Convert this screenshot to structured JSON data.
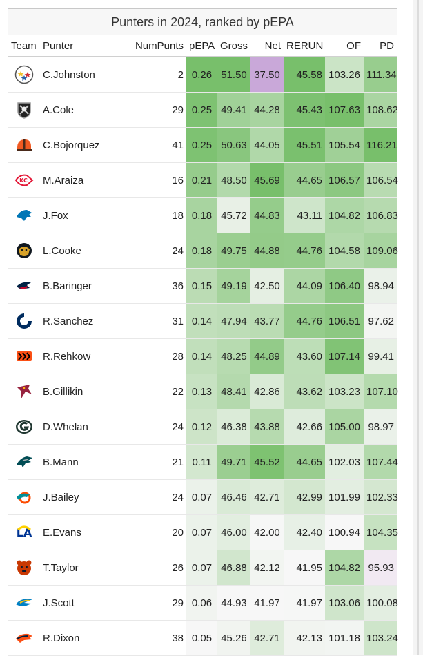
{
  "title": "Punters in 2024, ranked by pEPA",
  "columns": [
    "Team",
    "Punter",
    "NumPunts",
    "pEPA",
    "Gross",
    "Net",
    "RERUN",
    "OF",
    "PD"
  ],
  "scale": {
    "pEPA": {
      "min": 0.05,
      "max": 0.26
    },
    "Gross": {
      "min": 44.93,
      "max": 51.5
    },
    "Net": {
      "min": 41.97,
      "max": 45.69
    },
    "RERUN": {
      "min": 41.95,
      "max": 45.58
    },
    "OF": {
      "min": 100.94,
      "max": 107.63
    },
    "PD": {
      "min": 97.0,
      "max": 116.21
    }
  },
  "colors": {
    "high": "#78bf6b",
    "low": "#f7f7f7",
    "outlier": "#c9a8d9",
    "below": "#f1e9f2"
  },
  "rows": [
    {
      "team": "PIT",
      "logo": "pittsburgh-steelers-icon",
      "punter": "C.Johnston",
      "num": "2",
      "pepa": "0.26",
      "gross": "51.50",
      "net": "37.50",
      "rerun": "45.58",
      "of": "103.26",
      "pd": "111.34"
    },
    {
      "team": "LV",
      "logo": "las-vegas-raiders-icon",
      "punter": "A.Cole",
      "num": "29",
      "pepa": "0.25",
      "gross": "49.41",
      "net": "44.28",
      "rerun": "45.43",
      "of": "107.63",
      "pd": "108.62"
    },
    {
      "team": "CLE",
      "logo": "cleveland-browns-icon",
      "punter": "C.Bojorquez",
      "num": "41",
      "pepa": "0.25",
      "gross": "50.63",
      "net": "44.05",
      "rerun": "45.51",
      "of": "105.54",
      "pd": "116.21"
    },
    {
      "team": "KC",
      "logo": "kansas-city-chiefs-icon",
      "punter": "M.Araiza",
      "num": "16",
      "pepa": "0.21",
      "gross": "48.50",
      "net": "45.69",
      "rerun": "44.65",
      "of": "106.57",
      "pd": "106.54"
    },
    {
      "team": "DET",
      "logo": "detroit-lions-icon",
      "punter": "J.Fox",
      "num": "18",
      "pepa": "0.18",
      "gross": "45.72",
      "net": "44.83",
      "rerun": "43.11",
      "of": "104.82",
      "pd": "106.83"
    },
    {
      "team": "JAX",
      "logo": "jacksonville-jaguars-icon",
      "punter": "L.Cooke",
      "num": "24",
      "pepa": "0.18",
      "gross": "49.75",
      "net": "44.88",
      "rerun": "44.76",
      "of": "104.58",
      "pd": "109.06"
    },
    {
      "team": "NE",
      "logo": "new-england-patriots-icon",
      "punter": "B.Baringer",
      "num": "36",
      "pepa": "0.15",
      "gross": "49.19",
      "net": "42.50",
      "rerun": "44.09",
      "of": "106.40",
      "pd": "98.94"
    },
    {
      "team": "IND",
      "logo": "indianapolis-colts-icon",
      "punter": "R.Sanchez",
      "num": "31",
      "pepa": "0.14",
      "gross": "47.94",
      "net": "43.77",
      "rerun": "44.76",
      "of": "106.51",
      "pd": "97.62"
    },
    {
      "team": "CIN",
      "logo": "cincinnati-bengals-icon",
      "punter": "R.Rehkow",
      "num": "28",
      "pepa": "0.14",
      "gross": "48.25",
      "net": "44.89",
      "rerun": "43.60",
      "of": "107.14",
      "pd": "99.41"
    },
    {
      "team": "ARI",
      "logo": "arizona-cardinals-icon",
      "punter": "B.Gillikin",
      "num": "22",
      "pepa": "0.13",
      "gross": "48.41",
      "net": "42.86",
      "rerun": "43.62",
      "of": "103.23",
      "pd": "107.10"
    },
    {
      "team": "GB",
      "logo": "green-bay-packers-icon",
      "punter": "D.Whelan",
      "num": "24",
      "pepa": "0.12",
      "gross": "46.38",
      "net": "43.88",
      "rerun": "42.66",
      "of": "105.00",
      "pd": "98.97"
    },
    {
      "team": "PHI",
      "logo": "philadelphia-eagles-icon",
      "punter": "B.Mann",
      "num": "21",
      "pepa": "0.11",
      "gross": "49.71",
      "net": "45.52",
      "rerun": "44.65",
      "of": "102.03",
      "pd": "107.44"
    },
    {
      "team": "MIA",
      "logo": "miami-dolphins-icon",
      "punter": "J.Bailey",
      "num": "24",
      "pepa": "0.07",
      "gross": "46.46",
      "net": "42.71",
      "rerun": "42.99",
      "of": "101.99",
      "pd": "102.33"
    },
    {
      "team": "LAR",
      "logo": "los-angeles-rams-icon",
      "punter": "E.Evans",
      "num": "20",
      "pepa": "0.07",
      "gross": "46.00",
      "net": "42.00",
      "rerun": "42.40",
      "of": "100.94",
      "pd": "104.35"
    },
    {
      "team": "CHI",
      "logo": "chicago-bears-icon",
      "punter": "T.Taylor",
      "num": "26",
      "pepa": "0.07",
      "gross": "46.88",
      "net": "42.12",
      "rerun": "41.95",
      "of": "104.82",
      "pd": "95.93"
    },
    {
      "team": "LAC",
      "logo": "los-angeles-chargers-icon",
      "punter": "J.Scott",
      "num": "29",
      "pepa": "0.06",
      "gross": "44.93",
      "net": "41.97",
      "rerun": "41.97",
      "of": "103.06",
      "pd": "100.08"
    },
    {
      "team": "DEN",
      "logo": "denver-broncos-icon",
      "punter": "R.Dixon",
      "num": "38",
      "pepa": "0.05",
      "gross": "45.26",
      "net": "42.71",
      "rerun": "42.13",
      "of": "101.18",
      "pd": "103.24"
    }
  ]
}
